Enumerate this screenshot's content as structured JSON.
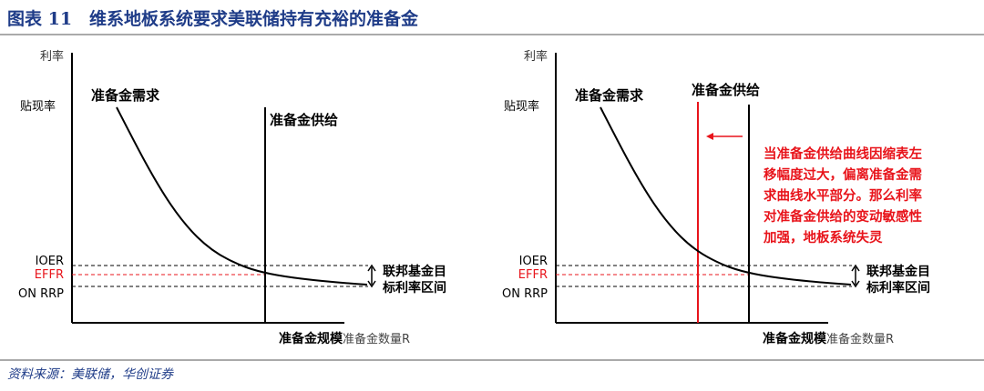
{
  "header": {
    "title": "图表 11　维系地板系统要求美联储持有充裕的准备金"
  },
  "colors": {
    "title": "#1f3c88",
    "red": "#e8141b",
    "axis": "#000000"
  },
  "left": {
    "y_axis_label": "利率",
    "discount_rate": "贴现率",
    "demand_label": "准备金需求",
    "supply_label": "准备金供给",
    "ioer": "IOER",
    "effr": "EFFR",
    "onrrp": "ON RRP",
    "range_line1": "联邦基金目",
    "range_line2": "标利率区间",
    "reserve_scale": "准备金规模",
    "x_axis_label": "准备金数量R"
  },
  "right": {
    "y_axis_label": "利率",
    "discount_rate": "贴现率",
    "demand_label": "准备金需求",
    "supply_label": "准备金供给",
    "ioer": "IOER",
    "effr": "EFFR",
    "onrrp": "ON RRP",
    "range_line1": "联邦基金目",
    "range_line2": "标利率区间",
    "reserve_scale": "准备金规模",
    "x_axis_label": "准备金数量R",
    "annotation": [
      "当准备金供给曲线因缩表左",
      "移幅度过大，偏离准备金需",
      "求曲线水平部分。那么利率",
      "对准备金供给的变动敏感性",
      "加强，地板系统失灵"
    ]
  },
  "footer": {
    "source": "资料来源：美联储，华创证券"
  }
}
